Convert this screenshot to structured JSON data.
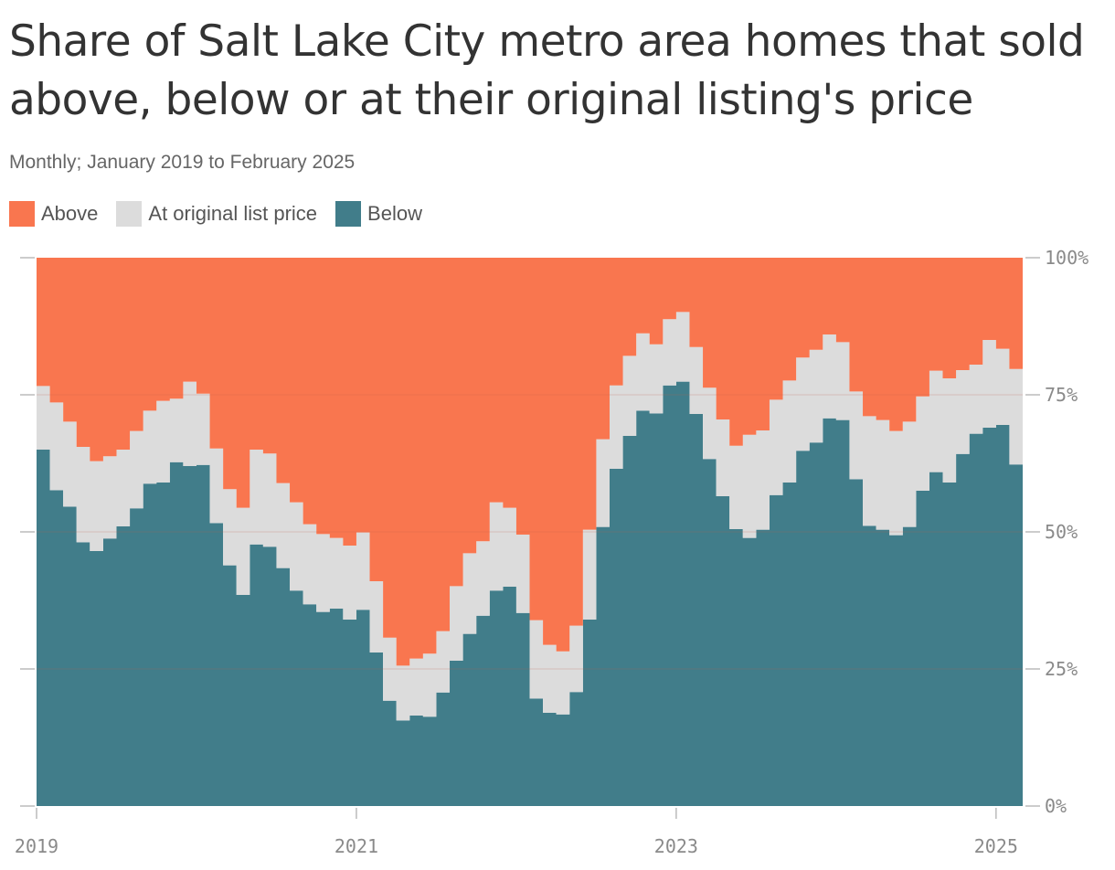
{
  "title": "Share of Salt Lake City metro area homes that sold above, below or at their original listing's price",
  "subtitle": "Monthly; January 2019 to February 2025",
  "colors": {
    "above": "#f9764f",
    "at": "#dcdcdc",
    "below": "#417d8a",
    "axis": "#bbbbbb",
    "grid": "#d66a4a"
  },
  "legend": [
    {
      "label": "Above",
      "color": "#f9764f"
    },
    {
      "label": "At original list price",
      "color": "#dcdcdc"
    },
    {
      "label": "Below",
      "color": "#417d8a"
    }
  ],
  "chart_data": {
    "type": "area",
    "stacked": true,
    "step": true,
    "x_start": "2019-01",
    "x_end": "2025-02",
    "ylim": [
      0,
      100
    ],
    "y_ticks": [
      {
        "value": 0,
        "label": "0%"
      },
      {
        "value": 25,
        "label": "25%"
      },
      {
        "value": 50,
        "label": "50%"
      },
      {
        "value": 75,
        "label": "75%"
      },
      {
        "value": 100,
        "label": "100%"
      }
    ],
    "x_ticks": [
      {
        "date": "2019-01",
        "label": "2019"
      },
      {
        "date": "2021-01",
        "label": "2021"
      },
      {
        "date": "2023-01",
        "label": "2023"
      },
      {
        "date": "2025-01",
        "label": "2025"
      }
    ],
    "series": [
      {
        "key": "below",
        "name": "Below",
        "values": [
          65.0,
          57.6,
          54.6,
          48.1,
          46.5,
          48.8,
          51.0,
          54.3,
          58.8,
          59.0,
          62.7,
          62.0,
          62.2,
          51.6,
          43.9,
          38.5,
          47.7,
          47.3,
          43.4,
          39.3,
          36.8,
          35.4,
          36.0,
          34.0,
          35.8,
          28.0,
          19.2,
          15.6,
          16.5,
          16.3,
          20.7,
          26.5,
          31.4,
          34.7,
          39.3,
          40.0,
          35.2,
          19.6,
          17.0,
          16.7,
          20.8,
          34.0,
          50.9,
          61.5,
          67.5,
          72.1,
          71.6,
          76.7,
          77.4,
          71.5,
          63.3,
          56.5,
          50.5,
          48.9,
          50.4,
          56.7,
          59.0,
          64.8,
          66.3,
          70.7,
          70.4,
          59.6,
          51.1,
          50.4,
          49.4,
          50.9,
          57.5,
          60.9,
          59.0,
          64.2,
          67.9,
          69.0,
          69.5,
          62.3
        ]
      },
      {
        "key": "at",
        "name": "At original list price",
        "values": [
          11.6,
          16.0,
          15.5,
          17.4,
          16.4,
          15.0,
          14.0,
          14.1,
          13.3,
          14.9,
          11.6,
          15.4,
          13.0,
          13.6,
          13.9,
          15.9,
          17.3,
          17.0,
          15.5,
          16.1,
          14.6,
          14.2,
          12.9,
          13.5,
          14.1,
          13.0,
          11.5,
          10.0,
          10.4,
          11.5,
          11.2,
          13.6,
          14.7,
          13.6,
          16.1,
          14.4,
          14.3,
          14.3,
          12.4,
          11.5,
          12.1,
          16.4,
          16.0,
          15.2,
          14.6,
          14.1,
          12.6,
          12.1,
          12.7,
          12.2,
          13.0,
          14.0,
          15.2,
          18.8,
          18.1,
          17.4,
          18.6,
          17.0,
          16.9,
          15.3,
          14.2,
          16.0,
          20.0,
          20.0,
          19.0,
          19.2,
          17.2,
          18.5,
          19.0,
          15.3,
          12.6,
          16.0,
          13.9,
          17.4
        ]
      },
      {
        "key": "above",
        "name": "Above",
        "values": [
          23.4,
          26.4,
          29.9,
          34.5,
          37.1,
          36.2,
          35.0,
          31.6,
          27.9,
          26.1,
          25.7,
          22.6,
          24.8,
          34.8,
          42.2,
          45.6,
          35.0,
          35.7,
          41.1,
          44.6,
          48.6,
          50.4,
          51.1,
          52.5,
          50.1,
          59.0,
          69.3,
          74.4,
          73.1,
          72.2,
          68.1,
          59.9,
          53.9,
          51.7,
          44.6,
          45.6,
          50.5,
          66.1,
          70.6,
          71.8,
          67.1,
          49.6,
          33.1,
          23.3,
          17.9,
          13.8,
          15.8,
          11.2,
          9.9,
          16.3,
          23.7,
          29.5,
          34.3,
          32.3,
          31.5,
          25.9,
          22.4,
          18.2,
          16.8,
          14.0,
          15.4,
          24.4,
          28.9,
          29.6,
          31.6,
          29.9,
          25.3,
          20.6,
          22.0,
          20.5,
          19.5,
          15.0,
          16.6,
          20.3
        ]
      }
    ]
  }
}
